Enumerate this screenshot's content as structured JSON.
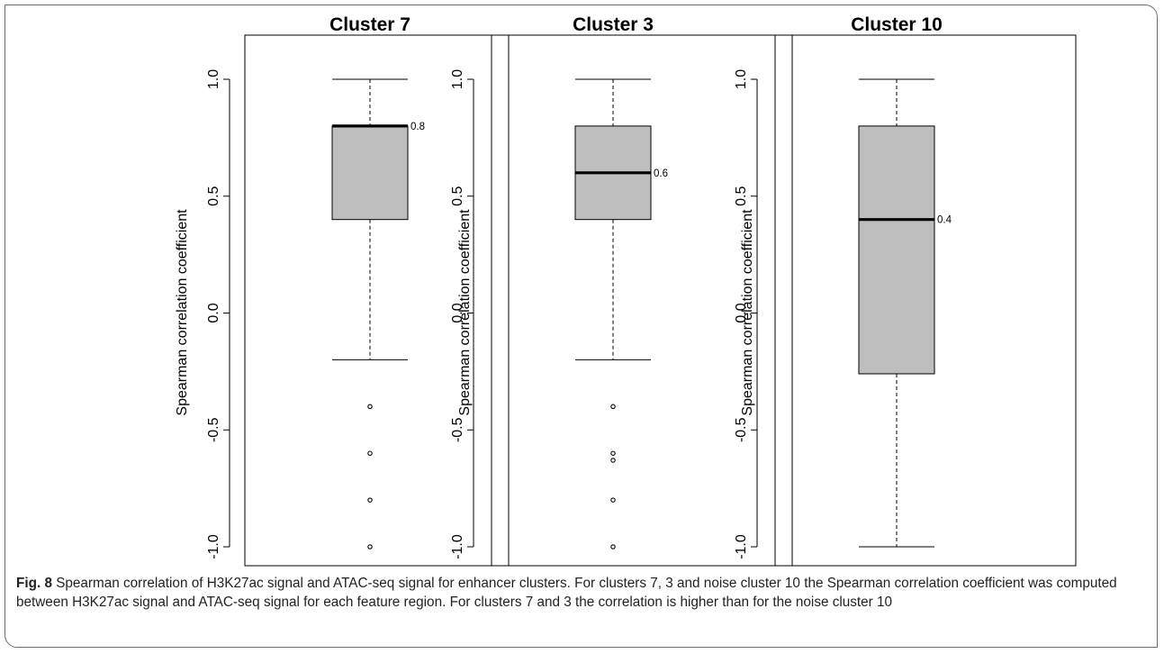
{
  "chart_data": [
    {
      "type": "box",
      "title": "Cluster 7",
      "ylabel": "Spearman correlation coefficient",
      "ylim": [
        -1.0,
        1.0
      ],
      "yticks": [
        "-1.0",
        "-0.5",
        "0.0",
        "0.5",
        "1.0"
      ],
      "box": {
        "whisker_low": -0.2,
        "q1": 0.4,
        "median": 0.8,
        "q3": 0.8,
        "whisker_high": 1.0
      },
      "median_label": "0.8",
      "outliers": [
        -0.4,
        -0.6,
        -0.8,
        -1.0
      ]
    },
    {
      "type": "box",
      "title": "Cluster 3",
      "ylabel": "Spearman correlation coefficient",
      "ylim": [
        -1.0,
        1.0
      ],
      "yticks": [
        "-1.0",
        "-0.5",
        "0.0",
        "0.5",
        "1.0"
      ],
      "box": {
        "whisker_low": -0.2,
        "q1": 0.4,
        "median": 0.6,
        "q3": 0.8,
        "whisker_high": 1.0
      },
      "median_label": "0.6",
      "outliers": [
        -0.4,
        -0.6,
        -0.63,
        -0.8,
        -1.0
      ]
    },
    {
      "type": "box",
      "title": "Cluster 10",
      "ylabel": "Spearman correlation coefficient",
      "ylim": [
        -1.0,
        1.0
      ],
      "yticks": [
        "-1.0",
        "-0.5",
        "0.0",
        "0.5",
        "1.0"
      ],
      "box": {
        "whisker_low": -1.0,
        "q1": -0.26,
        "median": 0.4,
        "q3": 0.8,
        "whisker_high": 1.0
      },
      "median_label": "0.4",
      "outliers": []
    }
  ],
  "caption": {
    "label": "Fig. 8",
    "text": "Spearman correlation of H3K27ac signal and ATAC-seq signal for enhancer clusters. For clusters 7, 3 and noise cluster 10 the Spearman correlation coefficient was computed between H3K27ac signal and ATAC-seq signal for each feature region. For clusters 7 and 3 the correlation is higher than for the noise cluster 10"
  },
  "colors": {
    "box_fill": "#bebebe",
    "stroke": "#000000",
    "frame": "#6e6e6e"
  }
}
